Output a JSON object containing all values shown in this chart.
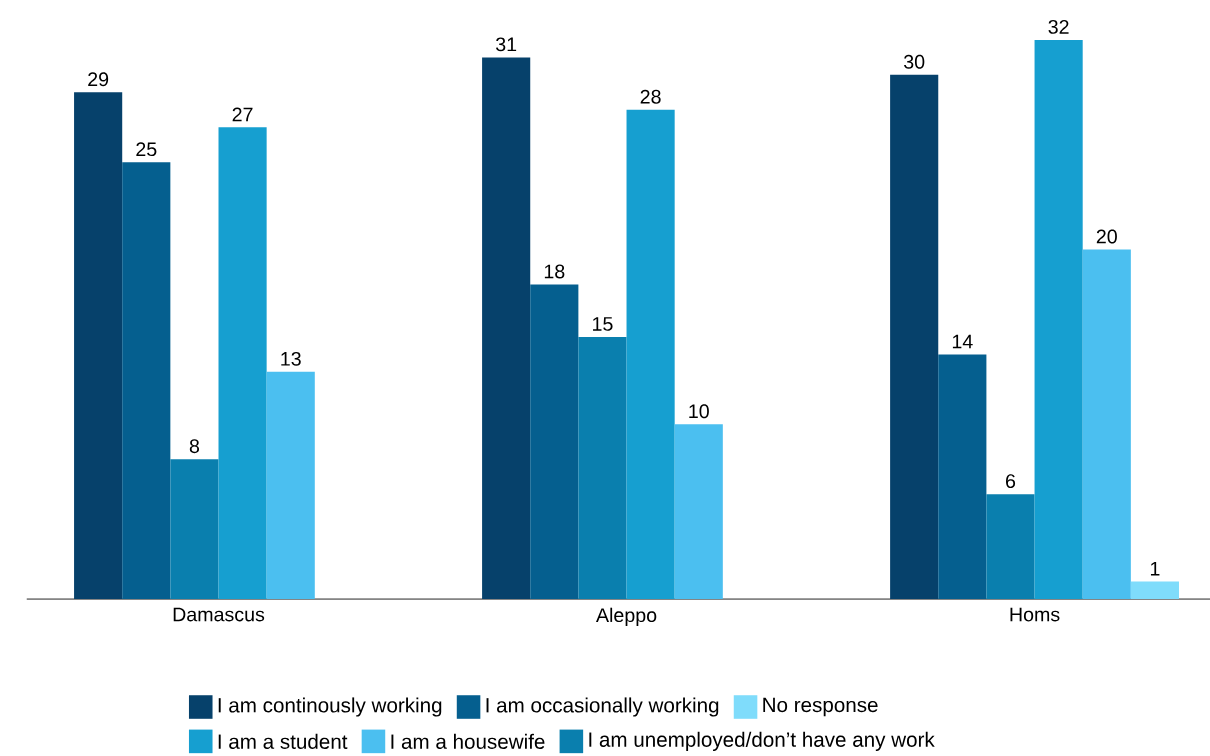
{
  "chart_data": {
    "type": "bar",
    "categories": [
      "Damascus",
      "Aleppo",
      "Homs"
    ],
    "series": [
      {
        "name": "I am continously working",
        "color": "#06416b",
        "values": [
          29,
          31,
          30
        ]
      },
      {
        "name": "I am occasionally working",
        "color": "#055f8f",
        "values": [
          25,
          18,
          14
        ]
      },
      {
        "name": "I am unemployed/don’t have any work",
        "color": "#0a7fae",
        "values": [
          8,
          15,
          6
        ]
      },
      {
        "name": "I am a student",
        "color": "#169fd0",
        "values": [
          27,
          28,
          32
        ]
      },
      {
        "name": "I am a housewife",
        "color": "#4bbff0",
        "values": [
          13,
          10,
          20
        ]
      },
      {
        "name": "No response",
        "color": "#7fdcfb",
        "values": [
          null,
          null,
          1
        ]
      }
    ],
    "data_labels": true,
    "legend": "bottom"
  }
}
